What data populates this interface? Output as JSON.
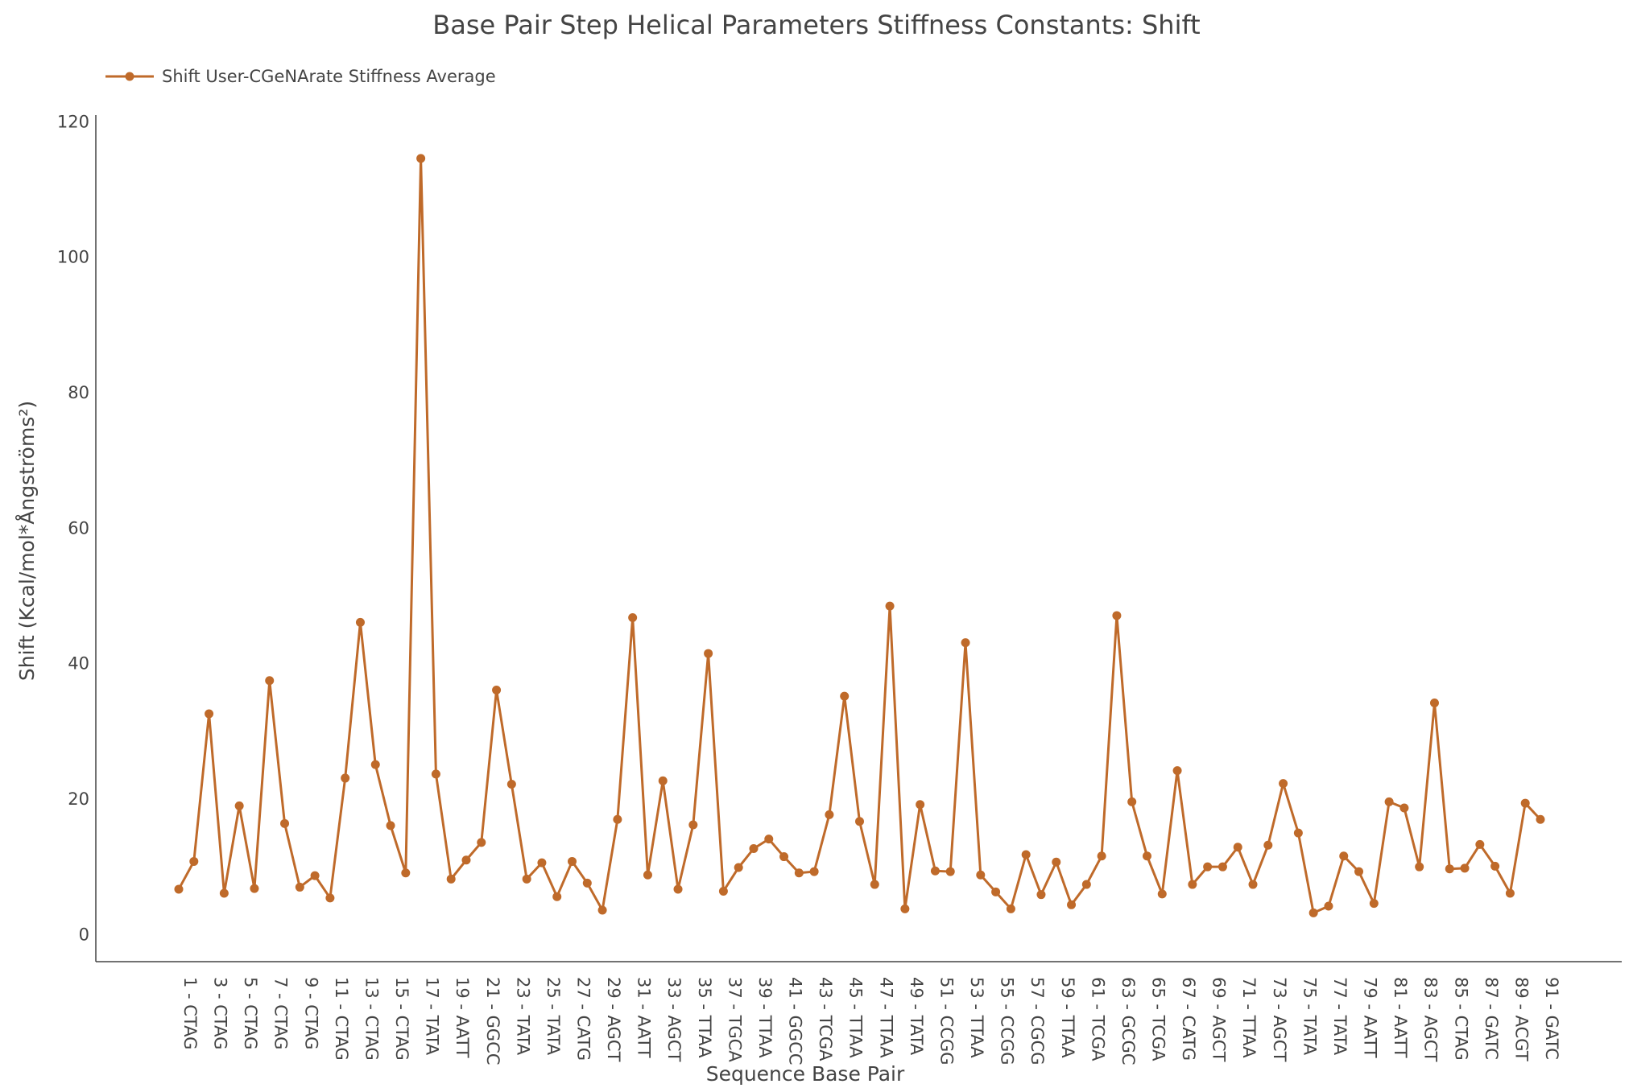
{
  "chart_data": {
    "type": "line",
    "title": "Base Pair Step Helical Parameters Stiffness Constants: Shift",
    "x_label": "Sequence Base Pair",
    "y_label": "Shift (Kcal/mol*Ångströms²)",
    "categories": [
      "1 - CTAG",
      null,
      "3 - CTAG",
      null,
      "5 - CTAG",
      null,
      "7 - CTAG",
      null,
      "9 - CTAG",
      null,
      "11 - CTAG",
      null,
      "13 - CTAG",
      null,
      "15 - CTAG",
      null,
      "17 - TATA",
      null,
      "19 - AATT",
      null,
      "21 - GGCC",
      null,
      "23 - TATA",
      null,
      "25 - TATA",
      null,
      "27 - CATG",
      null,
      "29 - AGCT",
      null,
      "31 - AATT",
      null,
      "33 - AGCT",
      null,
      "35 - TTAA",
      null,
      "37 - TGCA",
      null,
      "39 - TTAA",
      null,
      "41 - GGCC",
      null,
      "43 - TCGA",
      null,
      "45 - TTAA",
      null,
      "47 - TTAA",
      null,
      "49 - TATA",
      null,
      "51 - CCGG",
      null,
      "53 - TTAA",
      null,
      "55 - CCGG",
      null,
      "57 - CGCG",
      null,
      "59 - TTAA",
      null,
      "61 - TCGA",
      null,
      "63 - GCGC",
      null,
      "65 - TCGA",
      null,
      "67 - CATG",
      null,
      "69 - AGCT",
      null,
      "71 - TTAA",
      null,
      "73 - AGCT",
      null,
      "75 - TATA",
      null,
      "77 - TATA",
      null,
      "79 - AATT",
      null,
      "81 - AATT",
      null,
      "83 - AGCT",
      null,
      "85 - CTAG",
      null,
      "87 - GATC",
      null,
      "89 - ACGT",
      null,
      "91 - GATC"
    ],
    "series": [
      {
        "name": "Shift User-CGeNArate Stiffness Average",
        "color": "#bf6a2a",
        "values": [
          6.7,
          10.8,
          32.6,
          6.1,
          19.0,
          6.8,
          37.5,
          16.4,
          7.0,
          8.7,
          5.4,
          23.1,
          46.1,
          25.1,
          16.1,
          9.1,
          114.6,
          23.7,
          8.2,
          11.0,
          13.6,
          36.1,
          22.2,
          8.2,
          10.6,
          5.6,
          10.8,
          7.6,
          3.6,
          17.0,
          46.8,
          8.8,
          22.7,
          6.7,
          16.2,
          41.5,
          6.4,
          9.9,
          12.7,
          14.1,
          11.5,
          9.1,
          9.3,
          17.7,
          35.2,
          16.7,
          7.4,
          48.5,
          3.8,
          19.2,
          9.4,
          9.3,
          43.1,
          8.8,
          6.3,
          3.8,
          11.8,
          5.9,
          10.7,
          4.4,
          7.4,
          11.6,
          47.1,
          19.6,
          11.6,
          6.0,
          24.2,
          7.4,
          10.0,
          10.0,
          12.9,
          7.4,
          13.2,
          22.3,
          15.0,
          3.2,
          4.2,
          11.6,
          9.3,
          4.6,
          19.6,
          18.7,
          10.0,
          34.2,
          9.7,
          9.8,
          13.3,
          10.1,
          6.1,
          19.4,
          17.0
        ]
      }
    ],
    "ylim": [
      -4,
      121
    ],
    "yticks": [
      0,
      20,
      40,
      60,
      80,
      100,
      120
    ],
    "grid": false,
    "legend": "top-left"
  }
}
